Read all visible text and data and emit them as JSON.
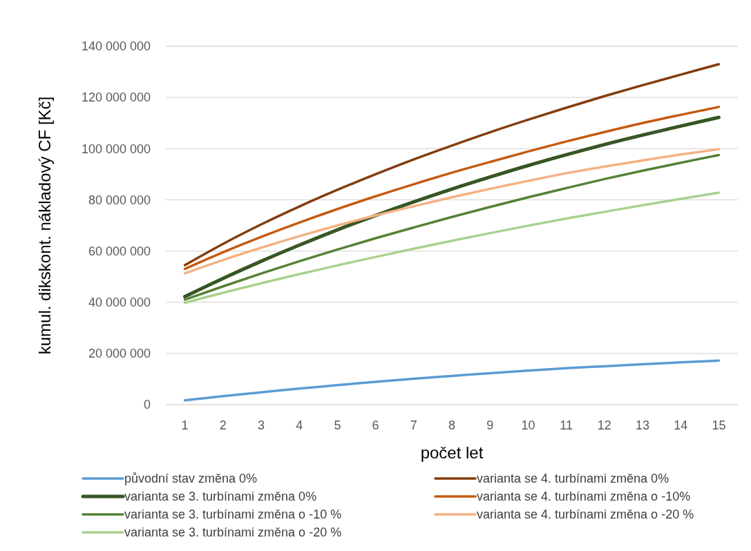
{
  "chart_data": {
    "type": "line",
    "xlabel": "počet let",
    "ylabel": "kumul. dikskont. nákladový CF [Kč]",
    "x": [
      1,
      2,
      3,
      4,
      5,
      6,
      7,
      8,
      9,
      10,
      11,
      12,
      13,
      14,
      15
    ],
    "xlim": [
      0.5,
      15.5
    ],
    "xticks": [
      1,
      2,
      3,
      4,
      5,
      6,
      7,
      8,
      9,
      10,
      11,
      12,
      13,
      14,
      15
    ],
    "ylim": [
      0,
      140000000
    ],
    "yticks": [
      0,
      {
        "value": 20000000,
        "label": "20 000 000"
      },
      {
        "value": 40000000,
        "label": "40 000 000"
      },
      {
        "value": 60000000,
        "label": "60 000 000"
      },
      {
        "value": 80000000,
        "label": "80 000 000"
      },
      {
        "value": 100000000,
        "label": "100 000 000"
      },
      {
        "value": 120000000,
        "label": "120 000 000"
      },
      {
        "value": 140000000,
        "label": "140 000 000"
      }
    ],
    "grid": "y",
    "legend": "bottom",
    "marker": "none",
    "line_style": "solid",
    "series": [
      {
        "name": "původní stav změna 0%",
        "color": "#5b9bd5",
        "values": [
          1700000,
          3300000,
          4800000,
          6300000,
          7600000,
          8900000,
          10100000,
          11200000,
          12300000,
          13300000,
          14200000,
          15000000,
          15800000,
          16500000,
          17200000
        ]
      },
      {
        "name": "varianta se 4. turbínami změna 0%",
        "color": "#843c0c",
        "values": [
          54500000,
          62800000,
          70400000,
          77400000,
          83900000,
          90000000,
          95800000,
          101200000,
          106400000,
          111300000,
          116000000,
          120500000,
          124800000,
          128900000,
          133000000
        ]
      },
      {
        "name": "varianta se 3. turbínami změna 0%",
        "color": "#375623",
        "values": [
          42200000,
          49300000,
          56000000,
          62300000,
          68300000,
          73900000,
          79200000,
          84200000,
          88900000,
          93400000,
          97600000,
          101600000,
          105300000,
          108800000,
          112200000
        ]
      },
      {
        "name": "varianta se 4. turbínami změna o -10%",
        "color": "#c55a11",
        "values": [
          53000000,
          59500000,
          65500000,
          71100000,
          76400000,
          81400000,
          86100000,
          90600000,
          94800000,
          98900000,
          102800000,
          106500000,
          110000000,
          113200000,
          116300000
        ]
      },
      {
        "name": "varianta se 3. turbínami změna o -10 %",
        "color": "#548235",
        "values": [
          41000000,
          46200000,
          51200000,
          56000000,
          60600000,
          65000000,
          69200000,
          73300000,
          77200000,
          81000000,
          84600000,
          88100000,
          91400000,
          94500000,
          97500000
        ]
      },
      {
        "name": "varianta se 4. turbínami změna o -20 %",
        "color": "#f4b183",
        "values": [
          51300000,
          56500000,
          61300000,
          65800000,
          70000000,
          73900000,
          77500000,
          81000000,
          84300000,
          87400000,
          90400000,
          93000000,
          95400000,
          97700000,
          99800000
        ]
      },
      {
        "name": "varianta se 3. turbínami změna o -20 %",
        "color": "#a9d18e",
        "values": [
          39800000,
          43700000,
          47400000,
          51000000,
          54400000,
          57700000,
          60900000,
          64000000,
          67000000,
          69900000,
          72700000,
          75300000,
          77900000,
          80400000,
          82800000
        ]
      }
    ]
  }
}
